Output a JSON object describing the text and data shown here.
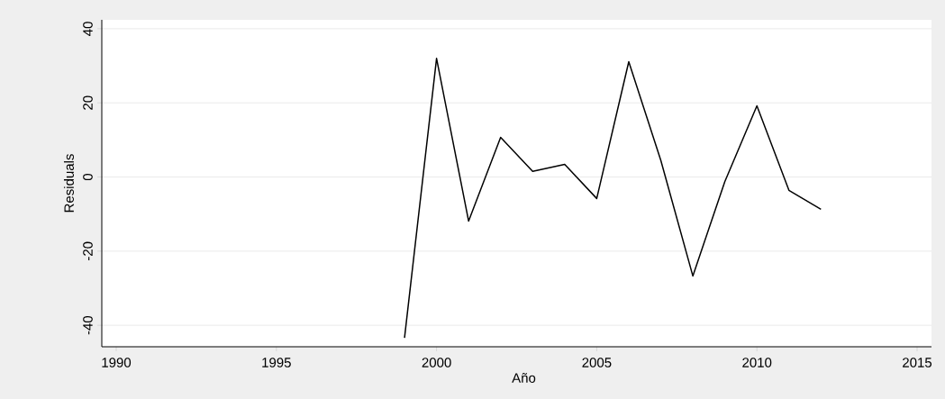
{
  "chart_data": {
    "type": "line",
    "xlabel": "Año",
    "ylabel": "Residuals",
    "x": [
      1999,
      2000,
      2001,
      2002,
      2003,
      2004,
      2005,
      2006,
      2007,
      2008,
      2009,
      2010,
      2011,
      2012
    ],
    "values": [
      -43.4,
      32.0,
      -11.9,
      10.7,
      1.5,
      3.4,
      -5.8,
      31.1,
      4.5,
      -26.7,
      -1.2,
      19.2,
      -3.6,
      -8.7
    ],
    "color": "#000000",
    "xlim": [
      1989.55,
      2015.45
    ],
    "ylim": [
      -45.8,
      42.4
    ],
    "xticks": [
      1990,
      1995,
      2000,
      2005,
      2010,
      2015
    ],
    "yticks": [
      -40,
      -20,
      0,
      20,
      40
    ],
    "grid": "y",
    "marker": "none",
    "line_style": "solid"
  }
}
